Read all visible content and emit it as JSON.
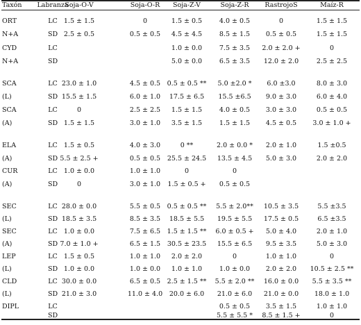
{
  "table": {
    "headers": [
      "Taxón",
      "Labranza",
      "Soja-O-V",
      "Soja-O-R",
      "Soja-Z-V",
      "Soja-Z-R",
      "RastrojoS",
      "Maíz-R"
    ],
    "rows": [
      [
        "ORT",
        "LC",
        "1.5 ± 1.5",
        "0",
        "1.5 ± 0.5",
        "4.0 ± 0.5",
        "0",
        "1.5 ± 1.5"
      ],
      [
        "N+A",
        "SD",
        "2.5 ± 0.5",
        "0.5 ± 0.5",
        "4.5 ± 4.5",
        "8.5 ± 1.5",
        "0.5 ± 0.5",
        "1.5 ± 1.5"
      ],
      [
        "CYD",
        "LC",
        "",
        "",
        "1.0 ± 0.0",
        "7.5 ± 3.5",
        "2.0 ± 2.0 +",
        "0"
      ],
      [
        "N+A",
        "SD",
        "",
        "",
        "5.0 ± 0.0",
        "6.5 ± 3.5",
        "12.0 ± 2.0",
        "2.5 ± 2.5"
      ],
      [
        "SCA",
        "LC",
        "23.0 ± 1.0",
        "4.5 ± 0.5",
        "0.5 ± 0.5 **",
        "5.0 ±2.0 *",
        "6.0 ±3.0",
        "8.0 ± 3.0"
      ],
      [
        "(L)",
        "SD",
        "15.5 ± 1.5",
        "6.0 ± 1.0",
        "17.5 ± 6.5",
        "15.5 ±6.5",
        "9.0 ± 3.0",
        "6.0 ± 4.0"
      ],
      [
        "SCA",
        "LC",
        "0",
        "2.5 ± 2.5",
        "1.5 ± 1.5",
        "4.0 ± 0.5",
        "3.0 ± 3.0",
        "0.5 ± 0.5"
      ],
      [
        "(A)",
        "SD",
        "1.5 ± 1.5",
        "3.0 ± 1.0",
        "3.5 ± 1.5",
        "1.5 ± 1.5",
        "4.5 ± 0.5",
        "3.0 ± 1.0 +"
      ],
      [
        "ELA",
        "LC",
        "1.5 ± 0.5",
        "4.0 ± 3.0",
        "0 **",
        "2.0 ± 0.0 *",
        "2.0 ± 1.0",
        "1.5 ±0.5"
      ],
      [
        "(A)",
        "SD",
        "5.5 ± 2.5 +",
        "0.5 ± 0.5",
        "25.5 ± 24.5",
        "13.5 ± 4.5",
        "5.0 ± 3.0",
        "2.0 ± 2.0"
      ],
      [
        "CUR",
        "LC",
        "1.0 ± 0.0",
        "1.0 ± 1.0",
        "0",
        "0",
        "",
        ""
      ],
      [
        "(A)",
        "SD",
        "0",
        "3.0 ± 1.0",
        "1.5 ± 0.5 +",
        "0.5 ± 0.5",
        "",
        ""
      ],
      [
        "SEC",
        "LC",
        "28.0 ± 0.0",
        "5.5 ± 0.5",
        "0.5 ± 0.5 **",
        "5.5 ± 2.0**",
        "10.5 ± 3.5",
        "5.5 ±3.5"
      ],
      [
        "(L)",
        "SD",
        "18.5 ± 3.5",
        "8.5 ± 3.5",
        "18.5 ± 5.5",
        "19.5 ± 5.5",
        "17.5 ± 0.5",
        "6.5 ±3.5"
      ],
      [
        "SEC",
        "LC",
        "1.0 ± 0.0",
        "7.5 ± 6.5",
        "1.5 ± 1.5 **",
        "6.0 ± 0.5 +",
        "5.0 ± 4.0",
        "2.0 ± 1.0"
      ],
      [
        "(A)",
        "SD",
        "7.0 ± 1.0 +",
        "6.5 ± 1.5",
        "30.5 ± 23.5",
        "15.5 ± 6.5",
        "9.5 ± 3.5",
        "5.0 ± 3.0"
      ],
      [
        "LEP",
        "LC",
        "1.5 ± 0.5",
        "1.0 ± 1.0",
        "2.0 ± 2.0",
        "0",
        "1.0 ± 1.0",
        "0"
      ],
      [
        "(L)",
        "SD",
        "1.0 ± 0.0",
        "1.0 ± 0.0",
        "1.0 ± 1.0",
        "1.0 ± 0.0",
        "2.0 ± 2.0",
        "10.5 ± 2.5 **"
      ],
      [
        "CLD",
        "LC",
        "30.0 ± 0.0",
        "6.5 ± 0.5",
        "2.5 ± 1.5 **",
        "5.5 ± 2.0 **",
        "16.0 ± 0.0",
        "5.5 ± 3.5 **"
      ],
      [
        "(L)",
        "SD",
        "21.0 ± 3.0",
        "11.0 ± 4.0",
        "20.0 ± 6.0",
        "21.0 ± 6.0",
        "21.0 ± 0.0",
        "18.0 ± 1.0"
      ],
      [
        "DIPL",
        "LC",
        "",
        "",
        "",
        "0.5 ± 0.5",
        "3.5 ± 1.5",
        "1.0 ± 1.0"
      ],
      [
        "",
        "SD",
        "",
        "",
        "",
        "5.5 ± 5.5 *",
        "8.5 ± 1.5 +",
        "0"
      ]
    ]
  }
}
